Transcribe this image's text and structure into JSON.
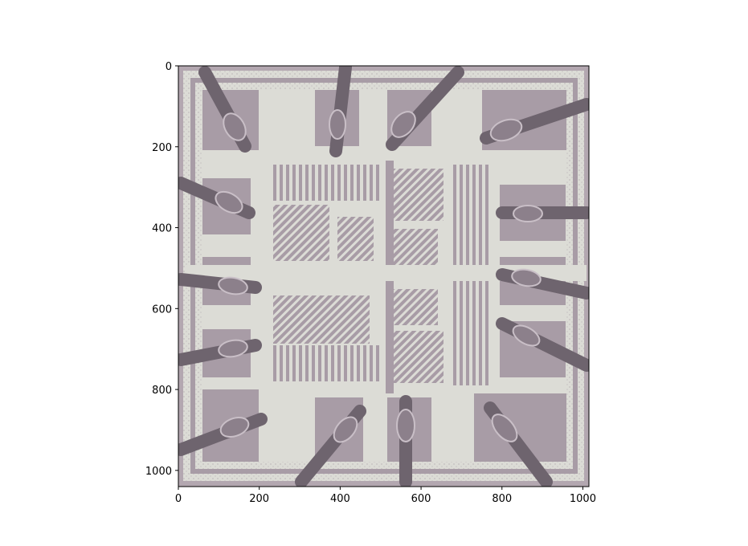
{
  "image": {
    "subject": "microchip-die-with-wire-bonds",
    "palette": {
      "pad_purple": "#a89ca6",
      "metal_light": "#dcdcd6",
      "bond_wire_dark": "#6e646e",
      "bond_highlight": "#c9bfc7",
      "frame_edge": "#b3a7b0"
    }
  },
  "axes": {
    "x_range": [
      0,
      1015
    ],
    "y_range": [
      1040,
      0
    ],
    "x_ticks": [
      0,
      200,
      400,
      600,
      800,
      1000
    ],
    "y_ticks": [
      0,
      200,
      400,
      600,
      800,
      1000
    ],
    "x_tick_labels": [
      "0",
      "200",
      "400",
      "600",
      "800",
      "1000"
    ],
    "y_tick_labels": [
      "0",
      "200",
      "400",
      "600",
      "800",
      "1000"
    ]
  }
}
